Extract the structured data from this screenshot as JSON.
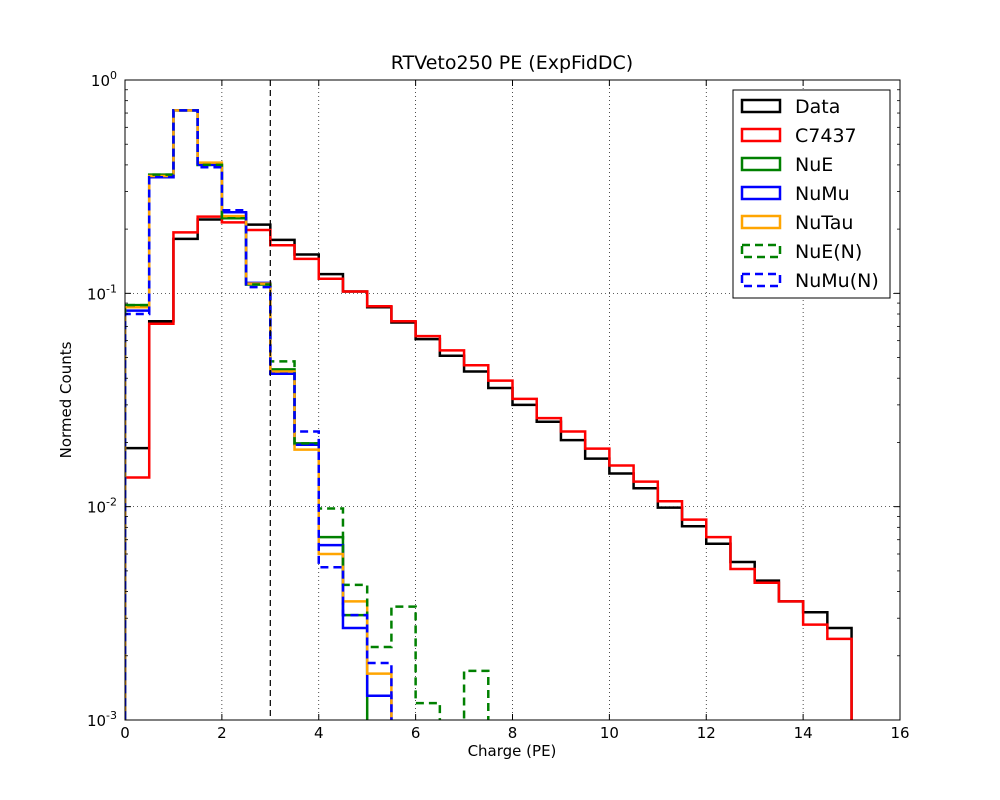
{
  "chart_data": {
    "type": "line",
    "title": "RTVeto250 PE (ExpFidDC)",
    "xlabel": "Charge (PE)",
    "ylabel": "Normed Counts",
    "xlim": [
      0,
      16
    ],
    "ylim": [
      0.001,
      1
    ],
    "yscale": "log",
    "grid": true,
    "legend_position": "top-right",
    "x_ticks": [
      0,
      2,
      4,
      6,
      8,
      10,
      12,
      14,
      16
    ],
    "x_tick_labels": [
      "0",
      "2",
      "4",
      "6",
      "8",
      "10",
      "12",
      "14",
      "16"
    ],
    "y_ticks": [
      0.001,
      0.01,
      0.1,
      1
    ],
    "y_tick_labels": [
      {
        "base": "10",
        "exp": "-3"
      },
      {
        "base": "10",
        "exp": "-2"
      },
      {
        "base": "10",
        "exp": "-1"
      },
      {
        "base": "10",
        "exp": "0"
      }
    ],
    "vertical_line": {
      "x": 3,
      "style": "dashed",
      "color": "#000000"
    },
    "bin_edges": [
      0,
      0.5,
      1,
      1.5,
      2,
      2.5,
      3,
      3.5,
      4,
      4.5,
      5,
      5.5,
      6,
      6.5,
      7,
      7.5,
      8,
      8.5,
      9,
      9.5,
      10,
      10.5,
      11,
      11.5,
      12,
      12.5,
      13,
      13.5,
      14,
      14.5,
      15
    ],
    "series": [
      {
        "name": "Data",
        "color": "#000000",
        "dashed": false,
        "values": [
          0.0188,
          0.074,
          0.18,
          0.222,
          0.225,
          0.21,
          0.178,
          0.152,
          0.123,
          0.102,
          0.086,
          0.073,
          0.061,
          0.051,
          0.043,
          0.036,
          0.03,
          0.025,
          0.0205,
          0.0168,
          0.0143,
          0.0122,
          0.0099,
          0.0081,
          0.0067,
          0.0055,
          0.0045,
          0.0036,
          0.0032,
          0.0027
        ]
      },
      {
        "name": "C7437",
        "color": "#ff0000",
        "dashed": false,
        "values": [
          0.0137,
          0.072,
          0.193,
          0.229,
          0.215,
          0.198,
          0.168,
          0.145,
          0.117,
          0.102,
          0.087,
          0.074,
          0.063,
          0.054,
          0.046,
          0.039,
          0.032,
          0.026,
          0.0225,
          0.0187,
          0.0156,
          0.0131,
          0.0106,
          0.0087,
          0.0072,
          0.0051,
          0.0044,
          0.0036,
          0.0028,
          0.0024
        ]
      },
      {
        "name": "NuE",
        "color": "#008000",
        "dashed": false,
        "values": [
          0.088,
          0.36,
          0.72,
          0.4,
          0.225,
          0.11,
          0.044,
          0.0198,
          0.0072,
          0.0031
        ]
      },
      {
        "name": "NuMu",
        "color": "#0000ff",
        "dashed": false,
        "values": [
          0.083,
          0.35,
          0.72,
          0.4,
          0.24,
          0.112,
          0.042,
          0.0195,
          0.0066,
          0.0027,
          0.0013
        ]
      },
      {
        "name": "NuTau",
        "color": "#ffa500",
        "dashed": false,
        "values": [
          0.086,
          0.355,
          0.72,
          0.41,
          0.23,
          0.111,
          0.043,
          0.0185,
          0.006,
          0.0036,
          0.00165
        ]
      },
      {
        "name": "NuE(N)",
        "color": "#008000",
        "dashed": true,
        "values": [
          0.088,
          0.36,
          0.72,
          0.4,
          0.225,
          0.11,
          0.048,
          0.0198,
          0.0098,
          0.0043,
          0.0022,
          0.0034,
          0.0012,
          0,
          0.0017
        ]
      },
      {
        "name": "NuMu(N)",
        "color": "#0000ff",
        "dashed": true,
        "values": [
          0.08,
          0.35,
          0.72,
          0.39,
          0.245,
          0.107,
          0.042,
          0.0225,
          0.0052,
          0.0031,
          0.00185
        ]
      }
    ]
  }
}
